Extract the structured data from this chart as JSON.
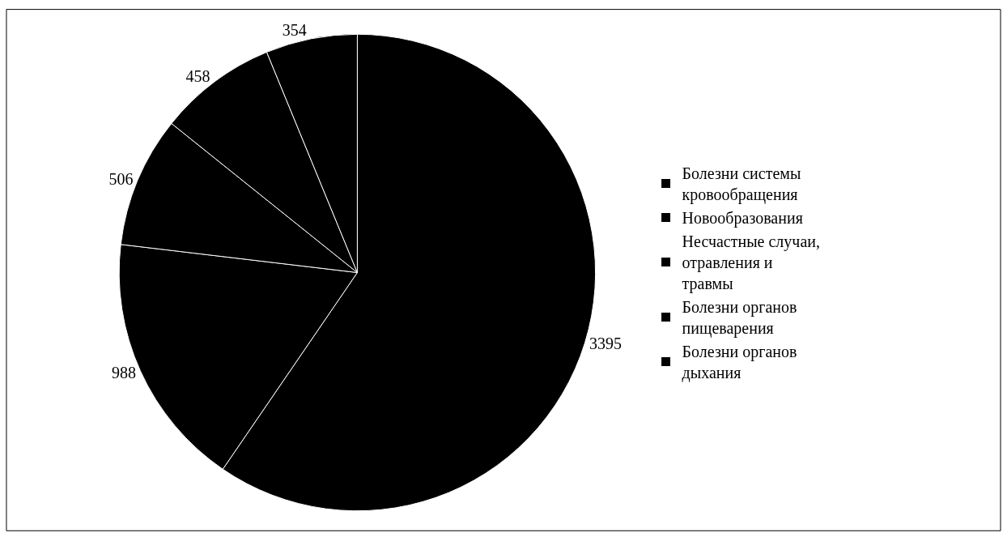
{
  "chart_data": {
    "type": "pie",
    "categories": [
      "Болезни системы кровообращения",
      "Новообразования",
      "Несчастные случаи, отравления и травмы",
      "Болезни органов пищеварения",
      "Болезни органов дыхания"
    ],
    "values": [
      3395,
      988,
      506,
      458,
      354
    ],
    "colors": [
      "#000000",
      "#000000",
      "#000000",
      "#000000",
      "#000000"
    ],
    "data_labels": true,
    "legend": "right"
  }
}
